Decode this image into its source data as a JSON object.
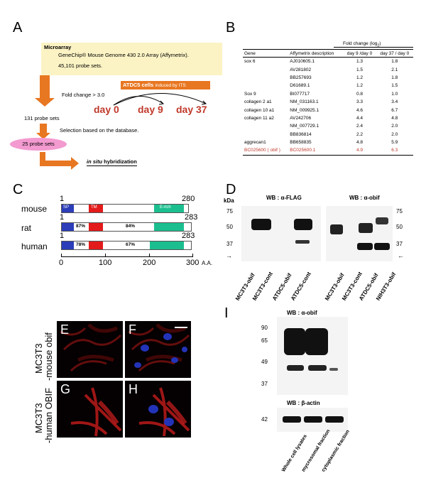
{
  "panels": {
    "A": "A",
    "B": "B",
    "C": "C",
    "D": "D",
    "E": "E",
    "F": "F",
    "G": "G",
    "H": "H",
    "I": "I"
  },
  "panelA": {
    "box_title": "Microarray",
    "box_line1": "GeneChip® Mouse Genome 430 2.0 Array (Affymetrix).",
    "box_line2": "45,101 probe sets.",
    "fold_change": "Fold change > 3.0",
    "atdc_label": "ATDC5 cells",
    "atdc_sub": "induced by ITS",
    "day0": "day 0",
    "day9": "day 9",
    "day37": "day 37",
    "probe_131": "131 probe sets",
    "selection": "Selection based on the database.",
    "probe_25": "25 probe sets",
    "in_situ": "in situ",
    "hybridization": " hybridization",
    "colors": {
      "arrow": "#e87722",
      "box": "#fbf3c4",
      "pink": "#f39ad0",
      "day": "#c0392b"
    }
  },
  "panelB": {
    "fold_header": "Fold change (log",
    "fold_sub": "2",
    "fold_close": ")",
    "headers": [
      "Gene",
      "Affymetrix description",
      "day 9 /day 0",
      "day 37 / day 0"
    ],
    "rows": [
      [
        "sox 6",
        "AJ010605.1",
        "1.3",
        "1.8"
      ],
      [
        "",
        "AV281802",
        "1.5",
        "2.1"
      ],
      [
        "",
        "BB257693",
        "1.2",
        "1.8"
      ],
      [
        "",
        "D61689.1",
        "1.2",
        "1.5"
      ],
      [
        "Sox 9",
        "BI077717",
        "0.8",
        "1.0"
      ],
      [
        "collagen 2 a1",
        "NM_031163.1",
        "3.3",
        "3.4"
      ],
      [
        "collagen 10 a1",
        "NM_009925.1",
        "4.6",
        "6.7"
      ],
      [
        "collagen 11 a2",
        "AV242706",
        "4.4",
        "4.8"
      ],
      [
        "",
        "NM_007729.1",
        "2.4",
        "2.0"
      ],
      [
        "",
        "BB836814",
        "2.2",
        "2.0"
      ],
      [
        "aggrecan1",
        "BB658835",
        "4.8",
        "5.9"
      ],
      [
        "BC025600 ( obif )",
        "BC025600.1",
        "4.9",
        "6.3"
      ]
    ]
  },
  "panelC": {
    "mouse": "mouse",
    "rat": "rat",
    "human": "human",
    "sp": "SP",
    "tm": "TM",
    "erich": "E-rich",
    "start": "1",
    "mouse_end": "280",
    "rat_end": "283",
    "human_end": "283",
    "rat_pct1": "87%",
    "rat_pct2": "84%",
    "human_pct1": "78%",
    "human_pct2": "67%",
    "axis_ticks": [
      "0",
      "100",
      "200",
      "300"
    ],
    "axis_unit": "A.A."
  },
  "panelD": {
    "kda": "kDa",
    "wb1": "WB : α-FLAG",
    "wb2": "WB : α-obif",
    "markers_left": [
      "75",
      "50",
      "37"
    ],
    "markers_right": [
      "75",
      "50",
      "37"
    ],
    "lanes_left": [
      "MC3T3-obif",
      "MC3T3-cont",
      "ATDC5-obif",
      "ATDC5-cont"
    ],
    "lanes_right": [
      "MC3T3-obif",
      "MC3T3-cont",
      "ATDC5-obif",
      "NIH3T3-obif"
    ]
  },
  "panelEH": {
    "mouse_row": "MC3T3 -mouse obif",
    "mouse_row_1": "MC3T3",
    "mouse_row_2": "-mouse obif",
    "human_row_1": "MC3T3",
    "human_row_2": "-human OBIF"
  },
  "panelI": {
    "wb_top": "WB : α-obif",
    "wb_bottom": "WB : β-actin",
    "markers": [
      "90",
      "65",
      "49",
      "37"
    ],
    "actin_marker": "42",
    "lanes": [
      "Whole cell lysates",
      "mycrosomal fraction",
      "cytoplasmic fraction"
    ]
  }
}
